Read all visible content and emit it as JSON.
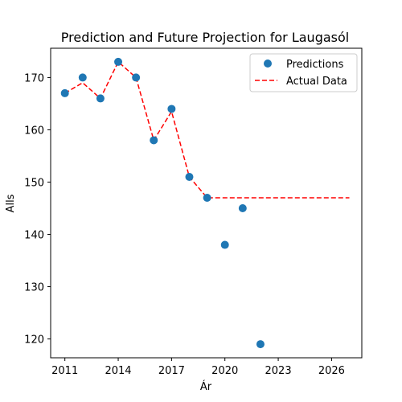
{
  "chart_data": {
    "type": "scatter",
    "title": "Prediction and Future Projection for Laugasól",
    "xlabel": "Ár",
    "ylabel": "Alls",
    "xlim": [
      2010.2,
      2027.7
    ],
    "ylim": [
      116.4,
      175.6
    ],
    "xticks": [
      2011,
      2014,
      2017,
      2020,
      2023,
      2026
    ],
    "yticks": [
      120,
      130,
      140,
      150,
      160,
      170
    ],
    "legend_position": "top-right",
    "grid": false,
    "series": [
      {
        "name": "Predictions",
        "kind": "scatter",
        "color": "#1f77b4",
        "x": [
          2011,
          2012,
          2013,
          2014,
          2015,
          2016,
          2017,
          2018,
          2019,
          2020,
          2021,
          2022
        ],
        "y": [
          167,
          170,
          166,
          173,
          170,
          158,
          164,
          151,
          147,
          138,
          145,
          119
        ]
      },
      {
        "name": "Actual Data",
        "kind": "line",
        "style": "dashed",
        "color": "#ff0000",
        "x": [
          2011,
          2012,
          2013,
          2014,
          2015,
          2016,
          2017,
          2018,
          2019,
          2020,
          2021,
          2022,
          2023,
          2024,
          2025,
          2026,
          2027
        ],
        "y": [
          167,
          169,
          166,
          173,
          170,
          158,
          163.5,
          151,
          147,
          147,
          147,
          147,
          147,
          147,
          147,
          147,
          147
        ]
      }
    ]
  }
}
